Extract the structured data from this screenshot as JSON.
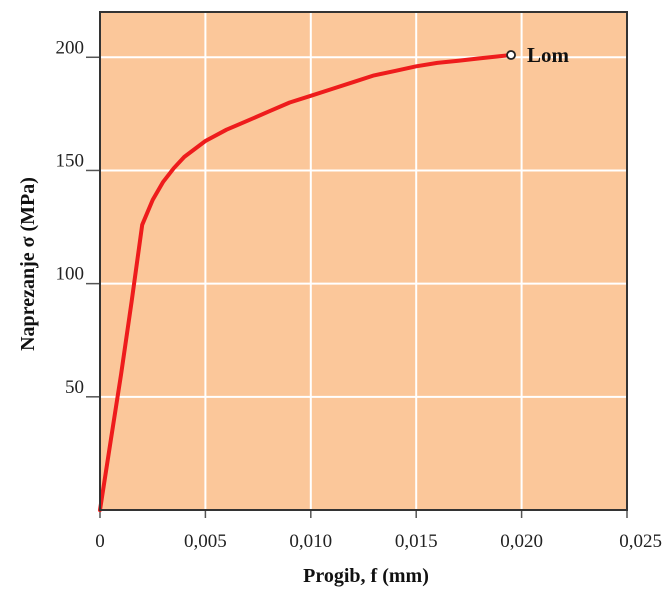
{
  "chart_data": {
    "type": "line",
    "xlabel": "Progib, f (mm)",
    "ylabel": "Naprezanje σ (MPa)",
    "xlim": [
      0,
      0.025
    ],
    "ylim": [
      0,
      220
    ],
    "x_ticks": [
      0,
      0.005,
      0.01,
      0.015,
      0.02,
      0.025
    ],
    "x_tick_labels": [
      "0",
      "0,005",
      "0,010",
      "0,015",
      "0,020",
      "0,025"
    ],
    "y_ticks": [
      50,
      100,
      150,
      200
    ],
    "y_tick_labels": [
      "50",
      "100",
      "150",
      "200"
    ],
    "grid": true,
    "colors": {
      "plot_background": "#fbc79a",
      "grid": "#ffffff",
      "curve": "#ee1c1c",
      "frame": "#333333"
    },
    "series": [
      {
        "x": [
          0,
          0.0005,
          0.001,
          0.0015,
          0.002,
          0.0025,
          0.003,
          0.0035,
          0.004,
          0.005,
          0.006,
          0.007,
          0.008,
          0.009,
          0.01,
          0.011,
          0.012,
          0.013,
          0.014,
          0.015,
          0.016,
          0.017,
          0.018,
          0.019,
          0.0195
        ],
        "y": [
          0,
          30,
          60,
          92,
          126,
          137,
          145,
          151,
          156,
          163,
          168,
          172,
          176,
          180,
          183,
          186,
          189,
          192,
          194,
          196,
          197.5,
          198.5,
          199.5,
          200.5,
          201
        ]
      }
    ],
    "annotations": [
      {
        "text": "Lom",
        "x": 0.0195,
        "y": 201,
        "marker": "open-circle"
      }
    ]
  }
}
